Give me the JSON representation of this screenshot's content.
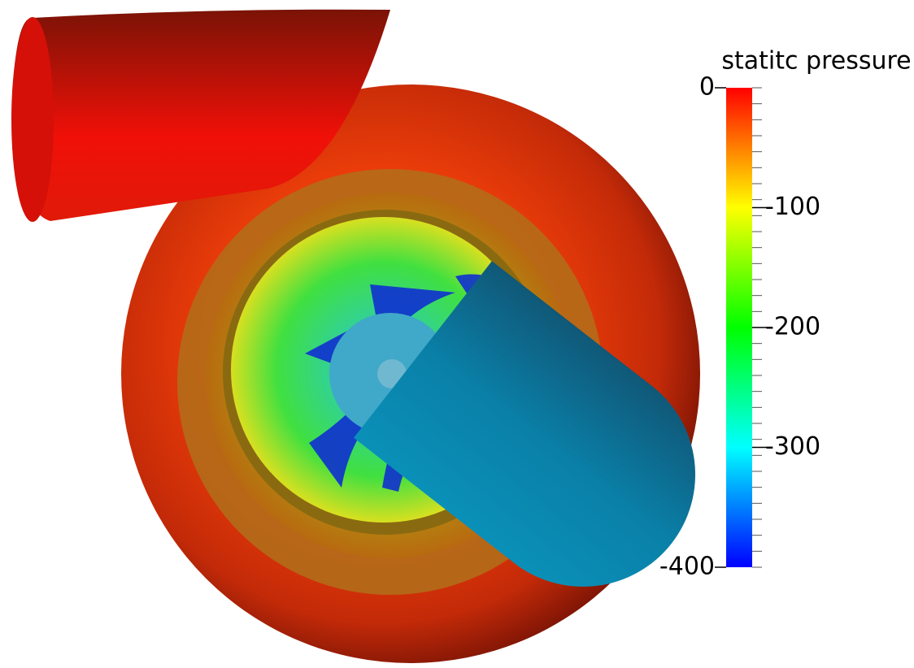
{
  "colorbar": {
    "title": "statitc pressure",
    "range": [
      -400,
      0
    ],
    "ticks": [
      0,
      -100,
      -200,
      -300,
      -400
    ],
    "colormap": [
      "#0000ff",
      "#00ffff",
      "#00ff00",
      "#ffff00",
      "#ff0000"
    ]
  }
}
